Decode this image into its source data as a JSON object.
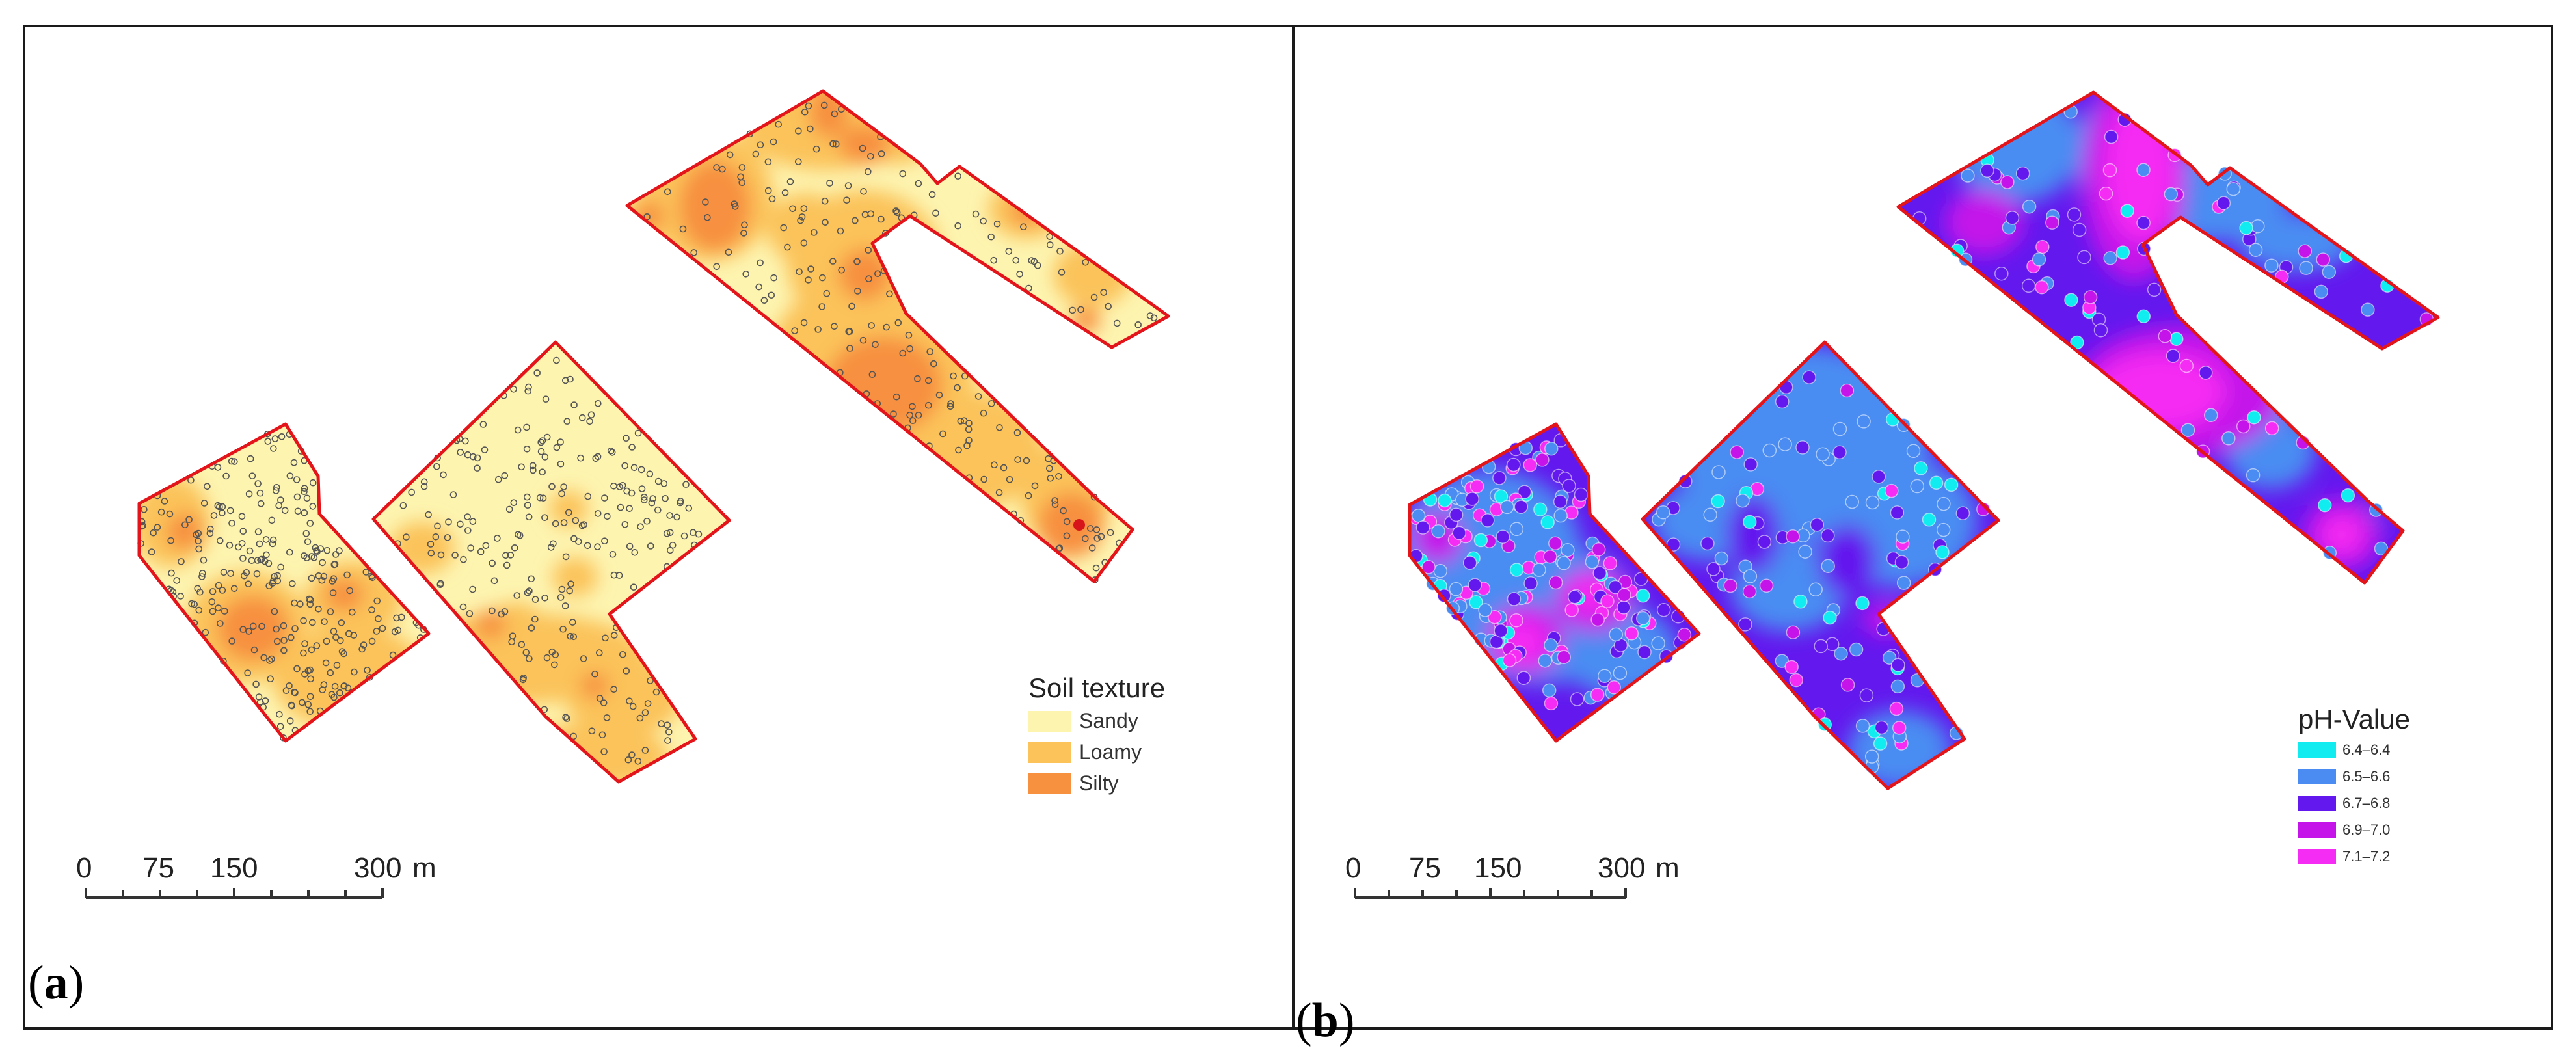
{
  "panels": [
    {
      "id": "a",
      "label_paren_open": "(",
      "label_letter": "a",
      "label_paren_close": ")",
      "legend": {
        "title": "Soil texture",
        "items": [
          {
            "label": "Sandy",
            "color": "#fdf4b0"
          },
          {
            "label": "Loamy",
            "color": "#fbc35a"
          },
          {
            "label": "Silty",
            "color": "#f7903f"
          }
        ]
      },
      "scale_bar": {
        "ticks": [
          "0",
          "75",
          "150",
          "300"
        ],
        "unit": "m"
      }
    },
    {
      "id": "b",
      "label_paren_open": "(",
      "label_letter": "b",
      "label_paren_close": ")",
      "legend": {
        "title": "pH-Value",
        "items": [
          {
            "label": "6.4–6.4",
            "color": "#11ecf0"
          },
          {
            "label": "6.5–6.6",
            "color": "#4a8cf2"
          },
          {
            "label": "6.7–6.8",
            "color": "#6318ee"
          },
          {
            "label": "6.9–7.0",
            "color": "#c414ea"
          },
          {
            "label": "7.1–7.2",
            "color": "#f52cf3"
          }
        ]
      },
      "scale_bar": {
        "ticks": [
          "0",
          "75",
          "150",
          "300"
        ],
        "unit": "m"
      }
    }
  ],
  "colors": {
    "field_outline": "#e3151b",
    "frame": "#1a1a1a",
    "sample_point_a": "#555555"
  }
}
